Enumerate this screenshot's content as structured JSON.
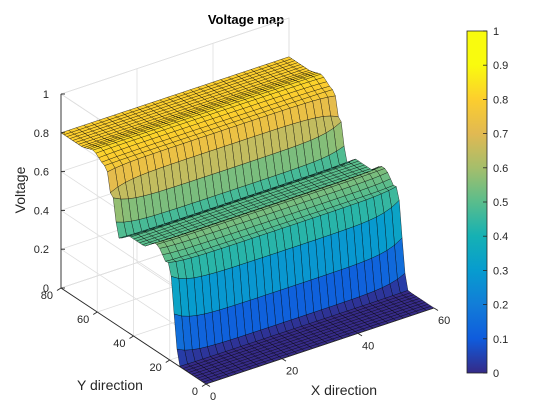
{
  "chart_data": {
    "type": "surface",
    "title": "Voltage map",
    "xlabel": "X direction",
    "ylabel": "Y direction",
    "zlabel": "Voltage",
    "xlim": [
      0,
      60
    ],
    "ylim": [
      0,
      80
    ],
    "zlim": [
      0,
      1
    ],
    "x_ticks": [
      "0",
      "20",
      "40",
      "60"
    ],
    "y_ticks": [
      "0",
      "20",
      "40",
      "60",
      "80"
    ],
    "z_ticks": [
      "0",
      "0.2",
      "0.4",
      "0.6",
      "0.8",
      "1"
    ],
    "grid": true,
    "colormap": "parula",
    "colorbar": {
      "location": "right",
      "limits": [
        0,
        1
      ],
      "ticks": [
        "0",
        "0.1",
        "0.2",
        "0.3",
        "0.4",
        "0.5",
        "0.6",
        "0.7",
        "0.8",
        "0.9",
        "1"
      ]
    },
    "grid_x_extent": [
      0,
      60
    ],
    "grid_y_extent": [
      0,
      80
    ],
    "profile_along_y": {
      "y": [
        0,
        15,
        21,
        28,
        34,
        42,
        48,
        55,
        62,
        70,
        80
      ],
      "voltage": [
        0,
        0,
        0.48,
        0.55,
        0.5,
        0.5,
        0.45,
        0.78,
        0.82,
        0.8,
        0.8
      ]
    },
    "edge_bump_x": [
      0,
      60
    ],
    "bump_amplitude": 0.06
  },
  "colors": {
    "axes": "#262626",
    "grid": "#dedede",
    "mesh": "#000000",
    "background": "#ffffff"
  }
}
